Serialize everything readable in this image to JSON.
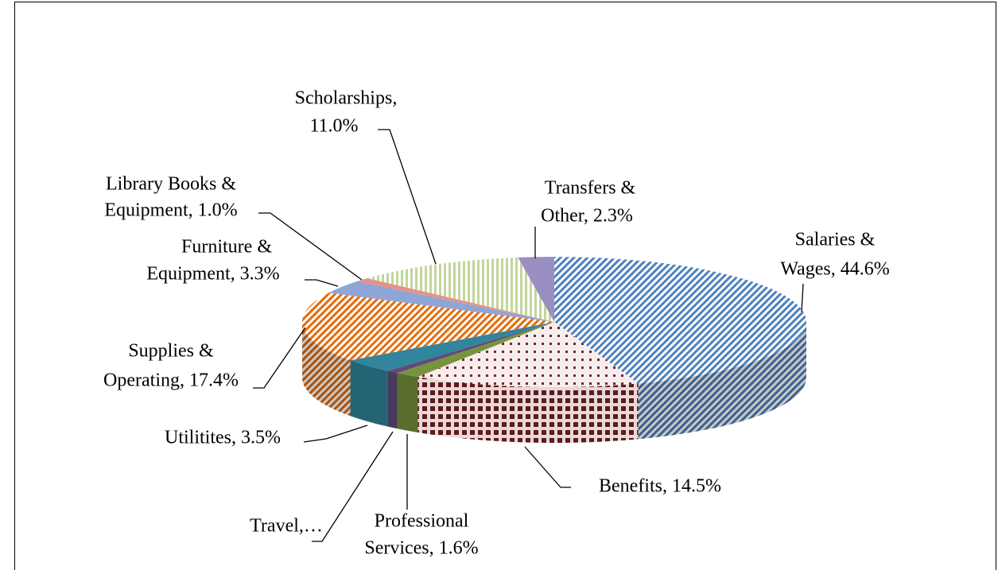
{
  "chart_data": {
    "type": "pie3d",
    "labels": [
      [
        "Salaries &",
        "Wages, 44.6%"
      ],
      [
        "Benefits, 14.5%"
      ],
      [
        "Professional",
        "Services, 1.6%"
      ],
      [
        "Travel,…"
      ],
      [
        "Utilitites, 3.5%"
      ],
      [
        "Supplies &",
        "Operating, 17.4%"
      ],
      [
        "Furniture &",
        "Equipment, 3.3%"
      ],
      [
        "Library Books &",
        "Equipment, 1.0%"
      ],
      [
        "Scholarships,",
        "11.0%"
      ],
      [
        "Transfers &",
        "Other, 2.3%"
      ]
    ],
    "values": [
      44.6,
      14.5,
      1.6,
      0.8,
      3.5,
      17.4,
      3.3,
      1.0,
      11.0,
      2.3
    ],
    "colors": [
      "#4f81bd",
      "#7b2424",
      "#77933c",
      "#604a7b",
      "#31859c",
      "#e46c0a",
      "#8ea5d6",
      "#e6928b",
      "#c3d69b",
      "#9a8fc0"
    ],
    "fills": [
      "stripes",
      "dots",
      "solid",
      "solid",
      "solid",
      "stripes",
      "solid",
      "solid",
      "stripes",
      "solid"
    ]
  }
}
